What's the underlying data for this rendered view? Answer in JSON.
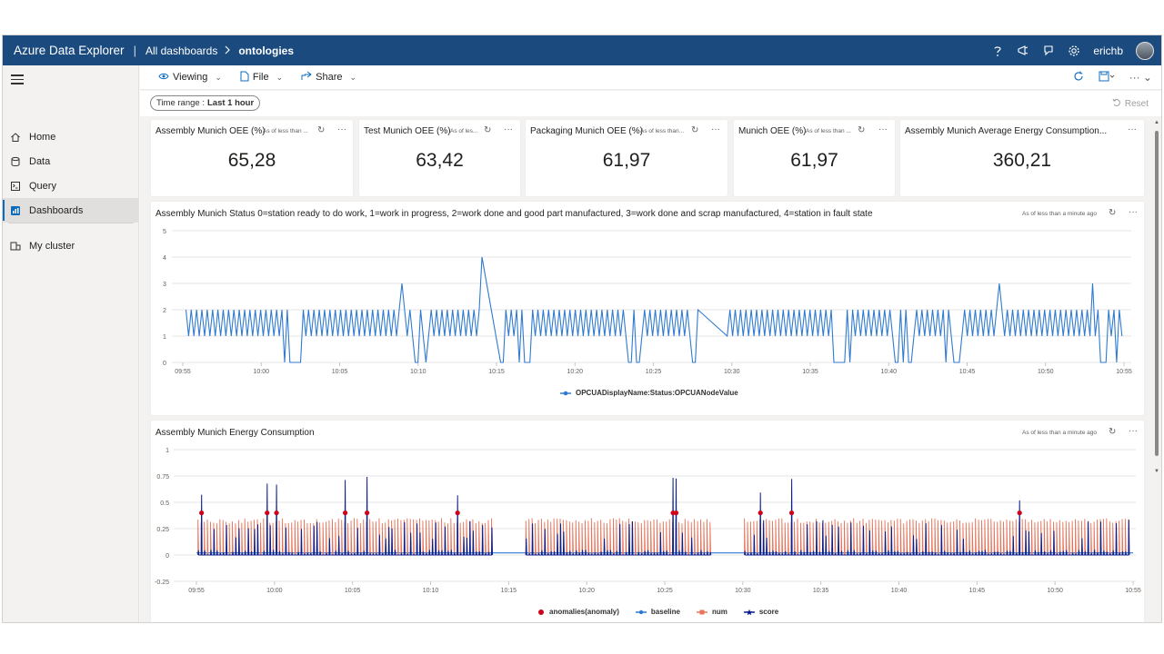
{
  "app": {
    "title": "Azure Data Explorer",
    "breadcrumb_root": "All dashboards",
    "breadcrumb_current": "ontologies",
    "user": "erichb",
    "top_icons": [
      "help-icon",
      "feedback-icon",
      "notifications-icon",
      "settings-icon"
    ]
  },
  "sidebar": {
    "items": [
      {
        "label": "Home",
        "icon": "home-icon"
      },
      {
        "label": "Data",
        "icon": "data-icon"
      },
      {
        "label": "Query",
        "icon": "query-icon"
      },
      {
        "label": "Dashboards",
        "icon": "dashboards-icon",
        "active": true
      },
      {
        "label": "My cluster",
        "icon": "cluster-icon"
      }
    ]
  },
  "toolbar": {
    "viewing_label": "Viewing",
    "file_label": "File",
    "share_label": "Share",
    "right_icons": [
      "refresh-icon",
      "save-icon",
      "more-icon"
    ]
  },
  "filters": {
    "time_range_label": "Time range :",
    "time_range_value": "Last 1 hour",
    "reset_label": "Reset"
  },
  "kpis": [
    {
      "title": "Assembly Munich OEE (%)",
      "asof": "As of less than ...",
      "value": "65,28"
    },
    {
      "title": "Test Munich OEE (%)",
      "asof": "As of les...",
      "value": "63,42"
    },
    {
      "title": "Packaging Munich OEE (%)",
      "asof": "As of less than...",
      "value": "61,97"
    },
    {
      "title": "Munich OEE (%)",
      "asof": "As of less than ...",
      "value": "61,97"
    },
    {
      "title": "Assembly Munich Average Energy Consumption...",
      "asof": "",
      "value": "360,21"
    }
  ],
  "status_chart": {
    "title": "Assembly Munich Status 0=station ready to do work, 1=work in progress, 2=work done and good part manufactured, 3=work done and scrap manufactured, 4=station in fault state",
    "asof": "As of less than a minute ago",
    "chart_data": {
      "type": "line",
      "xlabel": "",
      "ylabel": "",
      "ylim": [
        0,
        5
      ],
      "y_ticks": [
        "0",
        "1",
        "2",
        "3",
        "4",
        "5"
      ],
      "x_ticks": [
        "09:55",
        "10:00",
        "10:05",
        "10:10",
        "10:15",
        "10:20",
        "10:25",
        "10:30",
        "10:35",
        "10:40",
        "10:45",
        "10:50",
        "10:55"
      ],
      "series": [
        {
          "name": "OPCUADisplayName:Status:OPCUANodeValue",
          "color": "#2f7ad1",
          "pattern": "oscillates between 1 and 2 with drops to 0 and spikes to 3/4",
          "spikes": [
            {
              "t": "10:09",
              "v": 3
            },
            {
              "t": "10:14",
              "v": 4
            },
            {
              "t": "10:47",
              "v": 3
            },
            {
              "t": "10:53",
              "v": 3
            }
          ],
          "drops_to_zero": [
            "10:02",
            "10:10",
            "10:15",
            "10:17",
            "10:24",
            "10:28",
            "10:29",
            "10:37",
            "10:41",
            "10:44",
            "10:54"
          ]
        }
      ],
      "legend_position": "bottom"
    }
  },
  "energy_chart": {
    "title": "Assembly Munich Energy Consumption",
    "asof": "As of less than a minute ago",
    "chart_data": {
      "type": "line",
      "xlabel": "",
      "ylabel": "",
      "ylim": [
        -0.25,
        1
      ],
      "y_ticks": [
        "-0.25",
        "0",
        "0.25",
        "0.5",
        "0.75",
        "1"
      ],
      "x_ticks": [
        "09:55",
        "10:00",
        "10:05",
        "10:10",
        "10:15",
        "10:20",
        "10:25",
        "10:30",
        "10:35",
        "10:40",
        "10:45",
        "10:50",
        "10:55"
      ],
      "series": [
        {
          "name": "anomalies(anomaly)",
          "color": "#d0021b",
          "marker": "dot",
          "approx_value": 0.4
        },
        {
          "name": "baseline",
          "color": "#2f7ad1",
          "approx_value": 0.02
        },
        {
          "name": "num",
          "color": "#e8735a",
          "approx_range": [
            0,
            0.35
          ]
        },
        {
          "name": "score",
          "color": "#0b1f8c",
          "approx_range": [
            0,
            0.78
          ]
        }
      ],
      "gaps": [
        [
          "10:14",
          "10:16"
        ],
        [
          "10:28",
          "10:30"
        ]
      ],
      "legend_position": "bottom"
    }
  }
}
